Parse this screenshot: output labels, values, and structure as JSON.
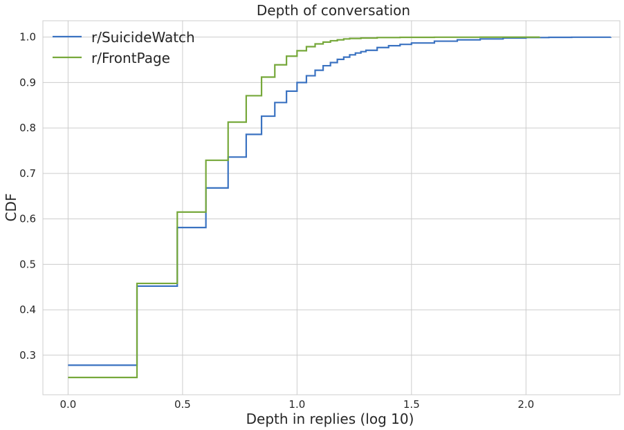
{
  "chart_data": {
    "type": "line",
    "title": "Depth of conversation",
    "xlabel": "Depth in replies (log 10)",
    "ylabel": "CDF",
    "xlim": [
      -0.11,
      2.41
    ],
    "ylim": [
      0.213,
      1.036
    ],
    "xticks": [
      0.0,
      0.5,
      1.0,
      1.5,
      2.0
    ],
    "xtick_labels": [
      "0.0",
      "0.5",
      "1.0",
      "1.5",
      "2.0"
    ],
    "yticks": [
      0.3,
      0.4,
      0.5,
      0.6,
      0.7,
      0.8,
      0.9,
      1.0
    ],
    "ytick_labels": [
      "0.3",
      "0.4",
      "0.5",
      "0.6",
      "0.7",
      "0.8",
      "0.9",
      "1.0"
    ],
    "grid": true,
    "legend": "top-left",
    "series": [
      {
        "name": "r/SuicideWatch",
        "color": "#3a72c1",
        "steps": [
          [
            0.0,
            0.278
          ],
          [
            0.301,
            0.452
          ],
          [
            0.477,
            0.581
          ],
          [
            0.602,
            0.668
          ],
          [
            0.699,
            0.736
          ],
          [
            0.778,
            0.786
          ],
          [
            0.845,
            0.826
          ],
          [
            0.903,
            0.856
          ],
          [
            0.954,
            0.881
          ],
          [
            1.0,
            0.9
          ],
          [
            1.041,
            0.915
          ],
          [
            1.079,
            0.927
          ],
          [
            1.114,
            0.937
          ],
          [
            1.146,
            0.944
          ],
          [
            1.176,
            0.951
          ],
          [
            1.204,
            0.956
          ],
          [
            1.23,
            0.961
          ],
          [
            1.255,
            0.965
          ],
          [
            1.279,
            0.968
          ],
          [
            1.301,
            0.971
          ],
          [
            1.35,
            0.977
          ],
          [
            1.4,
            0.981
          ],
          [
            1.45,
            0.984
          ],
          [
            1.5,
            0.987
          ],
          [
            1.6,
            0.991
          ],
          [
            1.7,
            0.994
          ],
          [
            1.8,
            0.996
          ],
          [
            1.9,
            0.998
          ],
          [
            2.0,
            0.999
          ],
          [
            2.1,
            0.9995
          ],
          [
            2.2,
            0.9998
          ],
          [
            2.37,
            1.0
          ]
        ]
      },
      {
        "name": "r/FrontPage",
        "color": "#76a83a",
        "steps": [
          [
            0.0,
            0.251
          ],
          [
            0.301,
            0.458
          ],
          [
            0.477,
            0.615
          ],
          [
            0.602,
            0.729
          ],
          [
            0.699,
            0.813
          ],
          [
            0.778,
            0.871
          ],
          [
            0.845,
            0.912
          ],
          [
            0.903,
            0.939
          ],
          [
            0.954,
            0.958
          ],
          [
            1.0,
            0.97
          ],
          [
            1.041,
            0.979
          ],
          [
            1.079,
            0.985
          ],
          [
            1.114,
            0.989
          ],
          [
            1.146,
            0.992
          ],
          [
            1.176,
            0.994
          ],
          [
            1.204,
            0.996
          ],
          [
            1.23,
            0.997
          ],
          [
            1.279,
            0.998
          ],
          [
            1.35,
            0.999
          ],
          [
            1.45,
            0.9995
          ],
          [
            1.6,
            0.9998
          ],
          [
            1.8,
            0.9999
          ],
          [
            2.06,
            1.0
          ]
        ]
      }
    ]
  }
}
